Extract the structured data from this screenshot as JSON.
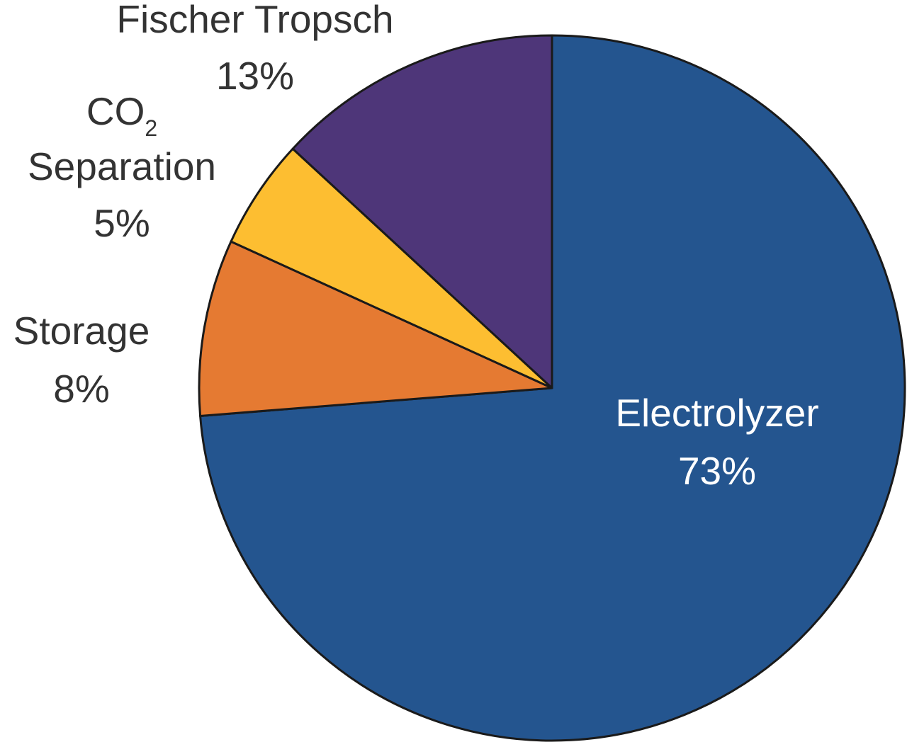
{
  "chart_data": {
    "type": "pie",
    "title": "",
    "unit": "%",
    "start_angle_deg": 0,
    "direction": "clockwise",
    "slices": [
      {
        "label": "Electrolyzer",
        "value": 73,
        "display": "73%",
        "color": "#24558f",
        "label_color": "#ffffff"
      },
      {
        "label": "Storage",
        "value": 8,
        "display": "8%",
        "color": "#e57a32",
        "label_color": "#333333"
      },
      {
        "label": "CO",
        "label_sub": "2",
        "label_line2": "Separation",
        "value": 5,
        "display": "5%",
        "color": "#fdbe31",
        "label_color": "#333333"
      },
      {
        "label": "Fischer Tropsch",
        "value": 13,
        "display": "13%",
        "color": "#4e3679",
        "label_color": "#333333"
      }
    ],
    "legend": "none"
  }
}
